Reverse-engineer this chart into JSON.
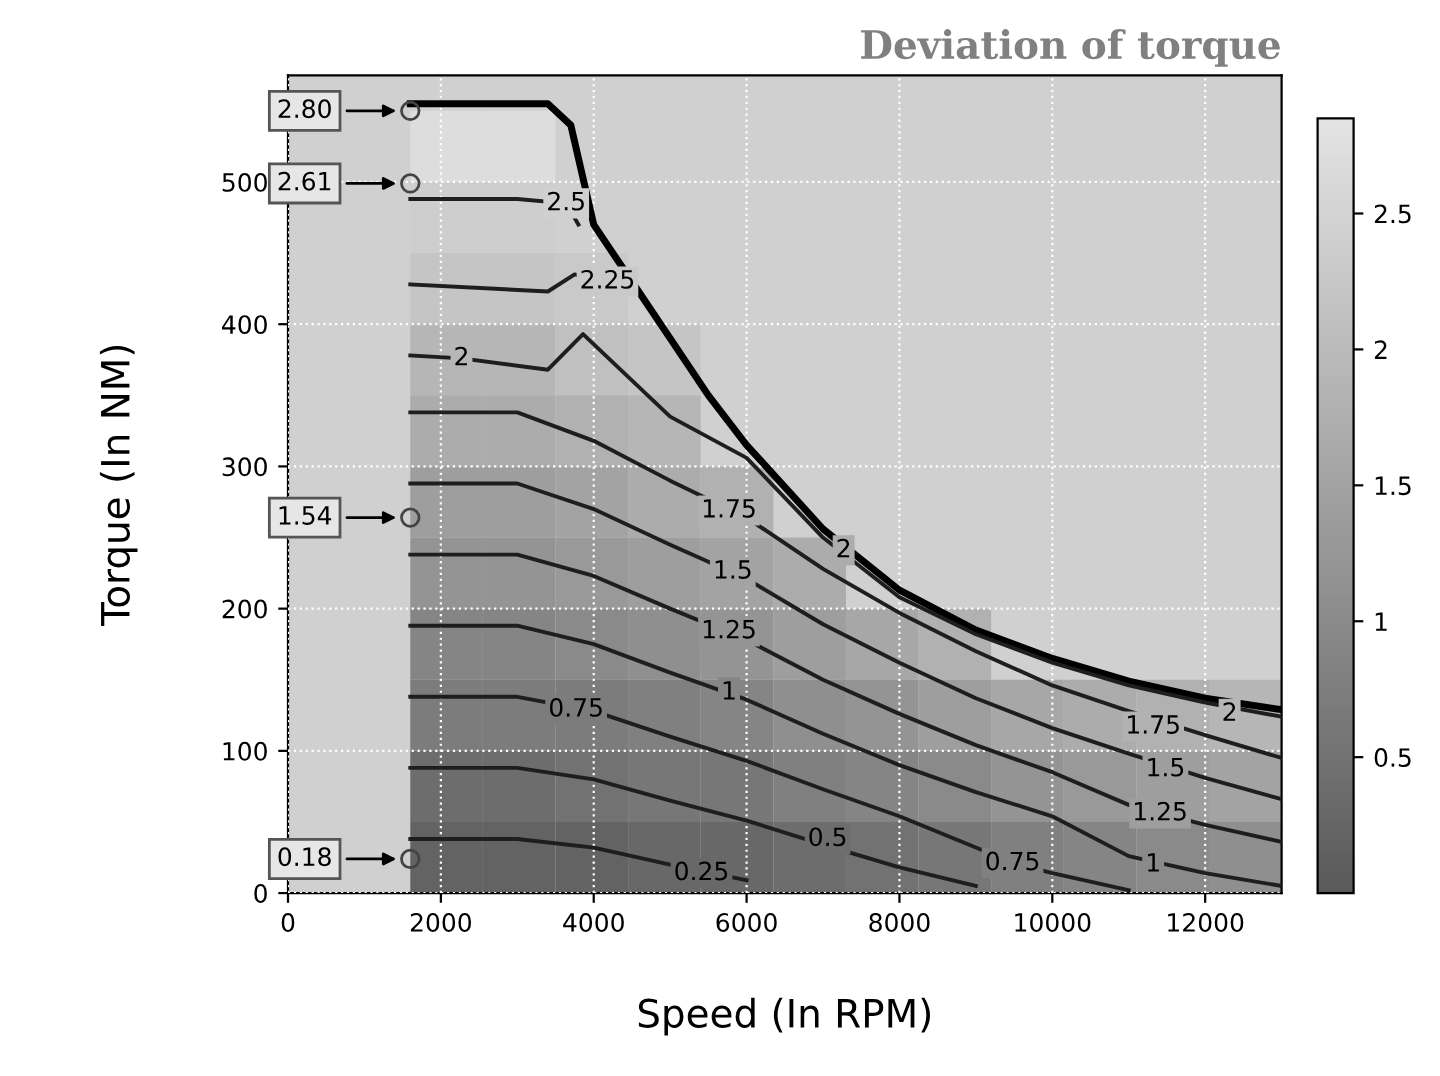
{
  "chart_data": {
    "type": "heatmap",
    "title": "Deviation of torque",
    "xlabel": "Speed (In RPM)",
    "ylabel": "Torque (In NM)",
    "x": [
      2075,
      3025,
      3975,
      4925,
      5875,
      6825,
      7775,
      8725,
      9675,
      10625,
      11575,
      12525
    ],
    "y": [
      525,
      475,
      425,
      375,
      325,
      275,
      225,
      175,
      125,
      75,
      25
    ],
    "cells": [
      [
        2.7,
        2.7,
        null,
        null,
        null,
        null,
        null,
        null,
        null,
        null,
        null,
        null
      ],
      [
        2.4,
        2.4,
        null,
        null,
        null,
        null,
        null,
        null,
        null,
        null,
        null,
        null
      ],
      [
        2.2,
        2.2,
        2.3,
        null,
        null,
        null,
        null,
        null,
        null,
        null,
        null,
        null
      ],
      [
        1.9,
        1.9,
        2.1,
        2.2,
        null,
        null,
        null,
        null,
        null,
        null,
        null,
        null
      ],
      [
        1.7,
        1.7,
        1.8,
        1.9,
        null,
        null,
        null,
        null,
        null,
        null,
        null,
        null
      ],
      [
        1.4,
        1.4,
        1.5,
        1.7,
        1.8,
        null,
        null,
        null,
        null,
        null,
        null,
        null
      ],
      [
        1.2,
        1.2,
        1.3,
        1.4,
        1.5,
        1.7,
        null,
        null,
        null,
        null,
        null,
        null
      ],
      [
        0.9,
        0.9,
        1.0,
        1.1,
        1.2,
        1.4,
        1.6,
        1.8,
        null,
        null,
        null,
        null
      ],
      [
        0.7,
        0.7,
        0.7,
        0.8,
        0.9,
        1.1,
        1.2,
        1.4,
        1.6,
        1.7,
        1.8,
        1.9
      ],
      [
        0.4,
        0.4,
        0.5,
        0.6,
        0.6,
        0.8,
        0.9,
        1.0,
        1.2,
        1.3,
        1.4,
        1.5
      ],
      [
        0.2,
        0.2,
        0.2,
        0.3,
        0.3,
        0.4,
        0.5,
        0.6,
        0.8,
        0.9,
        1.0,
        1.1
      ]
    ],
    "series": [
      {
        "type": "line",
        "color": "#000000",
        "x": [
          1600,
          3400,
          3700,
          4000,
          4500,
          5000,
          5500,
          6000,
          7000,
          8000,
          9000,
          10000,
          11000,
          12000,
          13000
        ],
        "values": [
          555,
          555,
          540,
          470,
          430,
          390,
          350,
          315,
          256,
          213,
          185,
          165,
          149,
          137,
          129
        ]
      },
      {
        "type": "line",
        "color": "#1e1e1e",
        "x": [
          1600,
          2000,
          3000,
          4000,
          5000,
          6000
        ],
        "values": [
          38,
          38,
          38,
          32,
          20,
          9
        ]
      },
      {
        "type": "line",
        "color": "#1e1e1e",
        "x": [
          1600,
          2000,
          3000,
          4000,
          5000,
          6000,
          7000,
          8000,
          9000
        ],
        "values": [
          88,
          88,
          88,
          80,
          65,
          51,
          34,
          18,
          5
        ]
      },
      {
        "type": "line",
        "color": "#1e1e1e",
        "x": [
          1600,
          2000,
          3000,
          4000,
          5000,
          6000,
          7000,
          8000,
          9000,
          9500,
          10000,
          11000
        ],
        "values": [
          138,
          138,
          138,
          128,
          110,
          93,
          73,
          54,
          32,
          21,
          14,
          2
        ]
      },
      {
        "type": "line",
        "color": "#1e1e1e",
        "x": [
          1600,
          2000,
          3000,
          4000,
          5000,
          6000,
          7000,
          8000,
          9000,
          10000,
          11000,
          12000,
          13000
        ],
        "values": [
          188,
          188,
          188,
          175,
          155,
          136,
          112,
          90,
          71,
          54,
          26,
          14,
          5
        ]
      },
      {
        "type": "line",
        "color": "#1e1e1e",
        "x": [
          1600,
          2000,
          3000,
          4000,
          5000,
          6000,
          7000,
          8000,
          9000,
          10000,
          11000,
          12000,
          13000
        ],
        "values": [
          238,
          238,
          238,
          223,
          200,
          178,
          150,
          126,
          104,
          85,
          62,
          48,
          36
        ]
      },
      {
        "type": "line",
        "color": "#1e1e1e",
        "x": [
          1600,
          2000,
          3000,
          4000,
          5000,
          6000,
          7000,
          8000,
          9000,
          10000,
          11000,
          12000,
          13000
        ],
        "values": [
          288,
          288,
          288,
          270,
          245,
          221,
          189,
          162,
          137,
          116,
          98,
          81,
          66
        ]
      },
      {
        "type": "line",
        "color": "#1e1e1e",
        "x": [
          1600,
          2000,
          3000,
          4000,
          5000,
          6000,
          7000,
          8000,
          9000,
          10000,
          11000,
          12000,
          13000
        ],
        "values": [
          338,
          338,
          338,
          318,
          290,
          264,
          228,
          197,
          170,
          146,
          128,
          111,
          95
        ]
      },
      {
        "type": "line",
        "color": "#1e1e1e",
        "x": [
          1600,
          2270,
          3400,
          3860,
          5000,
          6000,
          7000,
          8000,
          9000,
          10000,
          11000,
          12000,
          13000
        ],
        "values": [
          378,
          376,
          368,
          393,
          335,
          306,
          250,
          208,
          182,
          162,
          146,
          134,
          124
        ]
      },
      {
        "type": "line",
        "color": "#1e1e1e",
        "x": [
          1600,
          3400,
          3750,
          4180,
          4500
        ],
        "values": [
          428,
          423,
          435,
          430,
          428
        ]
      },
      {
        "type": "line",
        "color": "#1e1e1e",
        "x": [
          1600,
          2000,
          3000,
          3640,
          3800
        ],
        "values": [
          488,
          488,
          488,
          485,
          470
        ]
      },
      {
        "type": "scatter",
        "color": "#444444",
        "x": [
          1600,
          1600,
          1600,
          1600
        ],
        "values": [
          550,
          499,
          264,
          24
        ],
        "marker": "circle"
      }
    ],
    "clim": [
      0,
      2.85
    ],
    "cticks": [
      0.5,
      1,
      1.5,
      2,
      2.5
    ],
    "xlim": [
      0,
      13000
    ],
    "ylim": [
      0,
      575
    ],
    "xticks": [
      0,
      2000,
      4000,
      6000,
      8000,
      10000,
      12000
    ],
    "yticks": [
      0,
      100,
      200,
      300,
      400,
      500
    ],
    "grid": true,
    "annotations": [
      "2.80",
      "2.61",
      "1.54",
      "0.18",
      {
        "text": "2.5",
        "x": 3640,
        "y": 485
      },
      {
        "text": "2.25",
        "x": 4180,
        "y": 430
      },
      {
        "text": "2",
        "x": 2270,
        "y": 376
      },
      {
        "text": "1.75",
        "x": 5770,
        "y": 269
      },
      {
        "text": "1.5",
        "x": 5820,
        "y": 226
      },
      {
        "text": "1.25",
        "x": 5770,
        "y": 184
      },
      {
        "text": "1",
        "x": 5770,
        "y": 141
      },
      {
        "text": "0.75",
        "x": 3770,
        "y": 129
      },
      {
        "text": "0.5",
        "x": 7060,
        "y": 38
      },
      {
        "text": "0.25",
        "x": 5410,
        "y": 14
      },
      {
        "text": "0.75",
        "x": 9480,
        "y": 21
      },
      {
        "text": "2",
        "x": 7270,
        "y": 241
      },
      {
        "text": "1.75",
        "x": 11320,
        "y": 117
      },
      {
        "text": "1.5",
        "x": 11480,
        "y": 87
      },
      {
        "text": "1.25",
        "x": 11410,
        "y": 56
      },
      {
        "text": "1",
        "x": 11320,
        "y": 20
      },
      {
        "text": "2",
        "x": 12320,
        "y": 126
      }
    ]
  }
}
